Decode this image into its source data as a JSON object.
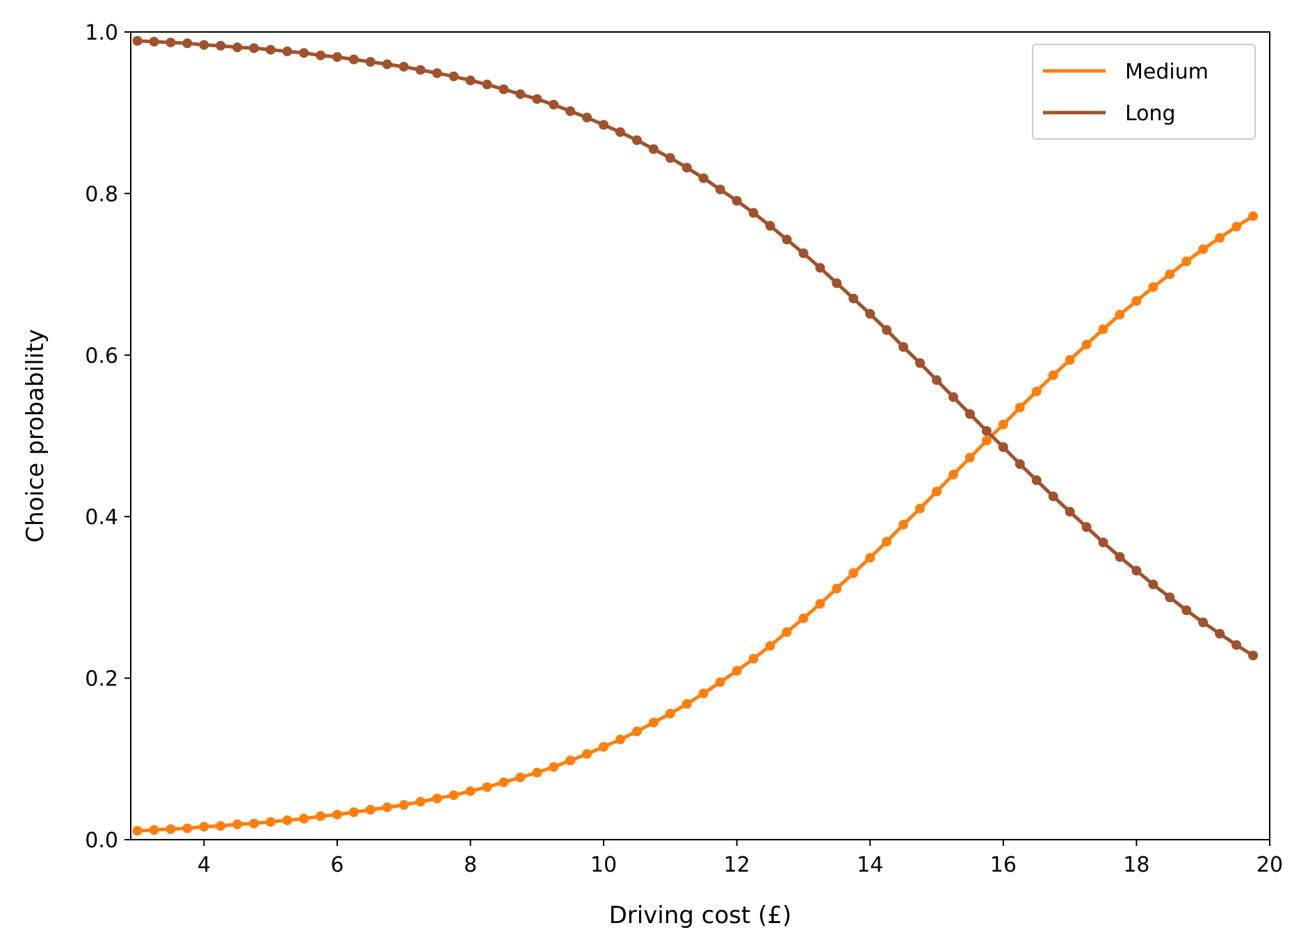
{
  "chart_data": {
    "type": "line",
    "title": "",
    "xlabel": "Driving cost (£)",
    "ylabel": "Choice probability",
    "xlim": [
      2.9,
      20
    ],
    "ylim": [
      0,
      1.0
    ],
    "xticks": [
      "4",
      "6",
      "8",
      "10",
      "12",
      "14",
      "16",
      "18",
      "20"
    ],
    "yticks": [
      "0.0",
      "0.2",
      "0.4",
      "0.6",
      "0.8",
      "1.0"
    ],
    "grid": false,
    "legend_position": "top-right",
    "x": [
      3.0,
      3.25,
      3.5,
      3.75,
      4.0,
      4.25,
      4.5,
      4.75,
      5.0,
      5.25,
      5.5,
      5.75,
      6.0,
      6.25,
      6.5,
      6.75,
      7.0,
      7.25,
      7.5,
      7.75,
      8.0,
      8.25,
      8.5,
      8.75,
      9.0,
      9.25,
      9.5,
      9.75,
      10.0,
      10.25,
      10.5,
      10.75,
      11.0,
      11.25,
      11.5,
      11.75,
      12.0,
      12.25,
      12.5,
      12.75,
      13.0,
      13.25,
      13.5,
      13.75,
      14.0,
      14.25,
      14.5,
      14.75,
      15.0,
      15.25,
      15.5,
      15.75,
      16.0,
      16.25,
      16.5,
      16.75,
      17.0,
      17.25,
      17.5,
      17.75,
      18.0,
      18.25,
      18.5,
      18.75,
      19.0,
      19.25,
      19.5,
      19.75
    ],
    "series": [
      {
        "name": "Medium",
        "color": "#ff7f0e",
        "values": [
          0.011,
          0.012,
          0.013,
          0.014,
          0.016,
          0.017,
          0.019,
          0.02,
          0.022,
          0.024,
          0.026,
          0.029,
          0.031,
          0.034,
          0.037,
          0.04,
          0.043,
          0.047,
          0.051,
          0.055,
          0.06,
          0.065,
          0.071,
          0.077,
          0.083,
          0.09,
          0.098,
          0.106,
          0.115,
          0.124,
          0.134,
          0.145,
          0.156,
          0.168,
          0.181,
          0.195,
          0.209,
          0.224,
          0.24,
          0.257,
          0.274,
          0.292,
          0.311,
          0.33,
          0.349,
          0.369,
          0.39,
          0.41,
          0.431,
          0.452,
          0.473,
          0.494,
          0.514,
          0.535,
          0.555,
          0.575,
          0.594,
          0.613,
          0.632,
          0.65,
          0.667,
          0.684,
          0.7,
          0.716,
          0.731,
          0.745,
          0.759,
          0.772
        ]
      },
      {
        "name": "Long",
        "color": "#a0522d",
        "values": [
          0.989,
          0.988,
          0.987,
          0.986,
          0.984,
          0.983,
          0.981,
          0.98,
          0.978,
          0.976,
          0.974,
          0.971,
          0.969,
          0.966,
          0.963,
          0.96,
          0.957,
          0.953,
          0.949,
          0.945,
          0.94,
          0.935,
          0.929,
          0.923,
          0.917,
          0.91,
          0.902,
          0.894,
          0.885,
          0.876,
          0.866,
          0.855,
          0.844,
          0.832,
          0.819,
          0.805,
          0.791,
          0.776,
          0.76,
          0.743,
          0.726,
          0.708,
          0.689,
          0.67,
          0.651,
          0.631,
          0.61,
          0.59,
          0.569,
          0.548,
          0.527,
          0.506,
          0.486,
          0.465,
          0.445,
          0.425,
          0.406,
          0.387,
          0.368,
          0.35,
          0.333,
          0.316,
          0.3,
          0.284,
          0.269,
          0.255,
          0.241,
          0.228
        ]
      }
    ]
  }
}
